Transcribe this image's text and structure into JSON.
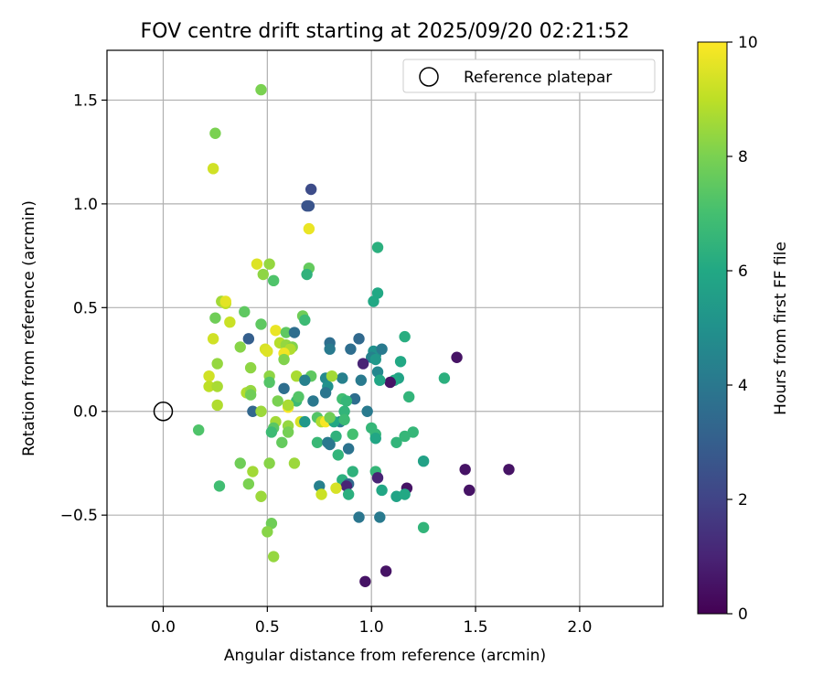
{
  "chart_data": {
    "type": "scatter",
    "title": "FOV centre drift starting at 2025/09/20 02:21:52",
    "xlabel": "Angular distance from reference (arcmin)",
    "ylabel": "Rotation from reference (arcmin)",
    "xlim": [
      -0.27,
      2.4
    ],
    "ylim": [
      -0.94,
      1.74
    ],
    "xticks": [
      {
        "v": 0.0,
        "label": "0.0"
      },
      {
        "v": 0.5,
        "label": "0.5"
      },
      {
        "v": 1.0,
        "label": "1.0"
      },
      {
        "v": 1.5,
        "label": "1.5"
      },
      {
        "v": 2.0,
        "label": "2.0"
      }
    ],
    "yticks": [
      {
        "v": -0.5,
        "label": "−0.5"
      },
      {
        "v": 0.0,
        "label": "0.0"
      },
      {
        "v": 0.5,
        "label": "0.5"
      },
      {
        "v": 1.0,
        "label": "1.0"
      },
      {
        "v": 1.5,
        "label": "1.5"
      }
    ],
    "grid": true,
    "colorbar": {
      "label": "Hours from first FF file",
      "range": [
        0,
        10
      ],
      "ticks": [
        {
          "v": 0,
          "label": "0"
        },
        {
          "v": 2,
          "label": "2"
        },
        {
          "v": 4,
          "label": "4"
        },
        {
          "v": 6,
          "label": "6"
        },
        {
          "v": 8,
          "label": "8"
        },
        {
          "v": 10,
          "label": "10"
        }
      ],
      "colormap": [
        "#440154",
        "#482475",
        "#414487",
        "#355f8d",
        "#2a788e",
        "#21918c",
        "#22a884",
        "#44bf70",
        "#7ad151",
        "#bddf26",
        "#fde725"
      ]
    },
    "legend": {
      "position": "top-right",
      "entries": [
        {
          "label": "Reference platepar",
          "marker": "open-circle"
        }
      ]
    },
    "reference": {
      "x": 0.0,
      "y": 0.0
    },
    "points": [
      [
        0.47,
        1.55,
        8.0
      ],
      [
        0.25,
        1.34,
        8.0
      ],
      [
        0.24,
        1.17,
        9.3
      ],
      [
        0.71,
        1.07,
        2.3
      ],
      [
        0.69,
        0.99,
        2.6
      ],
      [
        0.7,
        0.99,
        2.6
      ],
      [
        0.7,
        0.88,
        9.7
      ],
      [
        1.03,
        0.79,
        6.3
      ],
      [
        0.45,
        0.71,
        9.5
      ],
      [
        0.51,
        0.71,
        8.4
      ],
      [
        0.7,
        0.69,
        7.6
      ],
      [
        0.48,
        0.66,
        8.3
      ],
      [
        0.69,
        0.66,
        6.4
      ],
      [
        0.53,
        0.63,
        7.2
      ],
      [
        1.03,
        0.57,
        6.0
      ],
      [
        1.01,
        0.53,
        6.0
      ],
      [
        0.28,
        0.53,
        8.6
      ],
      [
        0.3,
        0.52,
        9.0
      ],
      [
        0.3,
        0.53,
        9.6
      ],
      [
        0.25,
        0.45,
        7.8
      ],
      [
        0.32,
        0.43,
        9.2
      ],
      [
        0.67,
        0.46,
        7.8
      ],
      [
        0.68,
        0.44,
        6.8
      ],
      [
        0.39,
        0.48,
        7.5
      ],
      [
        0.47,
        0.42,
        7.5
      ],
      [
        0.54,
        0.39,
        9.7
      ],
      [
        0.59,
        0.38,
        7.5
      ],
      [
        0.63,
        0.38,
        3.6
      ],
      [
        1.16,
        0.36,
        6.2
      ],
      [
        0.94,
        0.35,
        3.4
      ],
      [
        0.41,
        0.35,
        3.0
      ],
      [
        0.24,
        0.35,
        9.3
      ],
      [
        0.37,
        0.31,
        8.2
      ],
      [
        0.56,
        0.33,
        8.9
      ],
      [
        0.59,
        0.32,
        8.4
      ],
      [
        0.62,
        0.31,
        8.1
      ],
      [
        0.61,
        0.3,
        8.8
      ],
      [
        0.49,
        0.3,
        9.4
      ],
      [
        0.5,
        0.29,
        9.5
      ],
      [
        0.58,
        0.28,
        9.8
      ],
      [
        0.8,
        0.33,
        3.6
      ],
      [
        0.8,
        0.3,
        4.1
      ],
      [
        0.9,
        0.3,
        3.6
      ],
      [
        1.01,
        0.29,
        5.0
      ],
      [
        1.02,
        0.27,
        5.0
      ],
      [
        1.0,
        0.26,
        4.4
      ],
      [
        1.02,
        0.25,
        5.3
      ],
      [
        1.05,
        0.3,
        4.1
      ],
      [
        1.41,
        0.26,
        0.5
      ],
      [
        0.96,
        0.23,
        1.0
      ],
      [
        1.14,
        0.24,
        6.0
      ],
      [
        0.58,
        0.25,
        8.1
      ],
      [
        0.42,
        0.21,
        8.3
      ],
      [
        0.26,
        0.23,
        8.4
      ],
      [
        1.03,
        0.19,
        4.6
      ],
      [
        1.35,
        0.16,
        6.3
      ],
      [
        1.13,
        0.16,
        5.8
      ],
      [
        1.11,
        0.15,
        6.0
      ],
      [
        1.09,
        0.14,
        0.5
      ],
      [
        0.95,
        0.15,
        4.1
      ],
      [
        1.04,
        0.15,
        5.9
      ],
      [
        0.86,
        0.16,
        4.3
      ],
      [
        0.78,
        0.16,
        4.7
      ],
      [
        0.81,
        0.17,
        8.6
      ],
      [
        0.71,
        0.17,
        7.5
      ],
      [
        0.64,
        0.17,
        8.7
      ],
      [
        0.68,
        0.15,
        4.3
      ],
      [
        0.51,
        0.17,
        8.3
      ],
      [
        0.51,
        0.14,
        7.3
      ],
      [
        0.22,
        0.17,
        9.3
      ],
      [
        0.22,
        0.12,
        9.0
      ],
      [
        0.26,
        0.12,
        8.7
      ],
      [
        0.4,
        0.09,
        8.8
      ],
      [
        0.42,
        0.1,
        8.4
      ],
      [
        0.42,
        0.08,
        7.8
      ],
      [
        0.58,
        0.11,
        3.6
      ],
      [
        0.79,
        0.12,
        5.0
      ],
      [
        0.78,
        0.09,
        3.9
      ],
      [
        1.18,
        0.07,
        6.5
      ],
      [
        0.86,
        0.06,
        6.9
      ],
      [
        0.92,
        0.06,
        3.6
      ],
      [
        0.88,
        0.05,
        6.6
      ],
      [
        0.64,
        0.05,
        6.8
      ],
      [
        0.65,
        0.07,
        7.3
      ],
      [
        0.72,
        0.05,
        4.0
      ],
      [
        0.55,
        0.05,
        8.0
      ],
      [
        0.6,
        0.02,
        9.9
      ],
      [
        0.6,
        0.03,
        8.7
      ],
      [
        0.26,
        0.03,
        8.8
      ],
      [
        0.43,
        0.0,
        3.3
      ],
      [
        0.47,
        0.0,
        8.5
      ],
      [
        0.98,
        0.0,
        4.1
      ],
      [
        0.87,
        0.0,
        6.5
      ],
      [
        0.74,
        -0.03,
        7.3
      ],
      [
        0.76,
        -0.05,
        8.8
      ],
      [
        0.78,
        -0.05,
        9.9
      ],
      [
        0.66,
        -0.05,
        9.4
      ],
      [
        0.68,
        -0.05,
        5.3
      ],
      [
        0.54,
        -0.05,
        8.6
      ],
      [
        0.6,
        -0.07,
        8.4
      ],
      [
        0.85,
        -0.05,
        4.2
      ],
      [
        0.82,
        -0.05,
        6.0
      ],
      [
        0.87,
        -0.04,
        6.8
      ],
      [
        0.8,
        -0.03,
        7.8
      ],
      [
        1.0,
        -0.08,
        6.6
      ],
      [
        1.02,
        -0.11,
        6.6
      ],
      [
        1.2,
        -0.1,
        6.6
      ],
      [
        1.16,
        -0.12,
        6.6
      ],
      [
        0.91,
        -0.11,
        7.0
      ],
      [
        0.53,
        -0.08,
        7.4
      ],
      [
        0.52,
        -0.1,
        6.8
      ],
      [
        0.6,
        -0.1,
        7.9
      ],
      [
        0.17,
        -0.09,
        7.2
      ],
      [
        0.83,
        -0.12,
        6.4
      ],
      [
        1.02,
        -0.13,
        5.9
      ],
      [
        1.12,
        -0.15,
        6.5
      ],
      [
        0.74,
        -0.15,
        6.7
      ],
      [
        0.79,
        -0.15,
        4.1
      ],
      [
        0.8,
        -0.16,
        4.0
      ],
      [
        0.57,
        -0.15,
        7.6
      ],
      [
        0.89,
        -0.18,
        3.8
      ],
      [
        0.84,
        -0.21,
        6.5
      ],
      [
        1.25,
        -0.24,
        5.7
      ],
      [
        0.37,
        -0.25,
        7.8
      ],
      [
        0.51,
        -0.25,
        8.2
      ],
      [
        0.63,
        -0.25,
        8.5
      ],
      [
        0.43,
        -0.29,
        8.6
      ],
      [
        1.02,
        -0.29,
        6.6
      ],
      [
        0.91,
        -0.29,
        6.4
      ],
      [
        1.45,
        -0.28,
        0.5
      ],
      [
        1.66,
        -0.28,
        0.5
      ],
      [
        1.03,
        -0.32,
        1.0
      ],
      [
        0.86,
        -0.33,
        6.3
      ],
      [
        0.89,
        -0.35,
        3.4
      ],
      [
        0.88,
        -0.36,
        1.0
      ],
      [
        0.75,
        -0.36,
        4.3
      ],
      [
        0.83,
        -0.37,
        9.4
      ],
      [
        0.27,
        -0.36,
        6.9
      ],
      [
        0.41,
        -0.35,
        8.0
      ],
      [
        1.17,
        -0.37,
        0.5
      ],
      [
        1.47,
        -0.38,
        0.5
      ],
      [
        1.05,
        -0.38,
        5.9
      ],
      [
        1.12,
        -0.41,
        5.8
      ],
      [
        1.16,
        -0.4,
        6.0
      ],
      [
        0.89,
        -0.4,
        6.3
      ],
      [
        0.76,
        -0.4,
        9.2
      ],
      [
        0.47,
        -0.41,
        8.5
      ],
      [
        0.94,
        -0.51,
        3.9
      ],
      [
        1.04,
        -0.51,
        4.1
      ],
      [
        0.52,
        -0.54,
        7.8
      ],
      [
        0.5,
        -0.58,
        8.2
      ],
      [
        1.25,
        -0.56,
        6.5
      ],
      [
        0.53,
        -0.7,
        8.4
      ],
      [
        1.07,
        -0.77,
        0.5
      ],
      [
        0.97,
        -0.82,
        0.5
      ]
    ]
  }
}
